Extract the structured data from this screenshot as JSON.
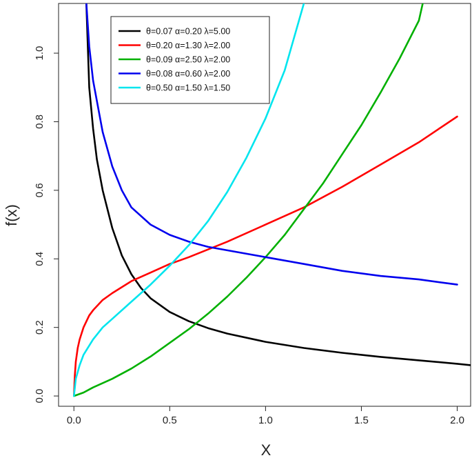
{
  "chart_data": {
    "type": "line",
    "title": "",
    "xlabel": "X",
    "ylabel": "f(x)",
    "xlim": [
      -0.08,
      2.07
    ],
    "ylim": [
      -0.03,
      1.145
    ],
    "xticks": [
      0.0,
      0.5,
      1.0,
      1.5,
      2.0
    ],
    "xtick_labels": [
      "0.0",
      "0.5",
      "1.0",
      "1.5",
      "2.0"
    ],
    "yticks": [
      0.0,
      0.2,
      0.4,
      0.6,
      0.8,
      1.0
    ],
    "ytick_labels": [
      "0.0",
      "0.2",
      "0.4",
      "0.6",
      "0.8",
      "1.0"
    ],
    "grid": false,
    "legend_position": "top-left",
    "series": [
      {
        "name": "θ=0.07  α=0.20  λ=5.00",
        "color": "#000000",
        "x": [
          0.065,
          0.08,
          0.1,
          0.12,
          0.15,
          0.2,
          0.25,
          0.3,
          0.35,
          0.4,
          0.5,
          0.6,
          0.7,
          0.8,
          1.0,
          1.2,
          1.4,
          1.6,
          1.8,
          2.0,
          2.07
        ],
        "y": [
          1.145,
          0.9,
          0.78,
          0.69,
          0.6,
          0.49,
          0.41,
          0.355,
          0.315,
          0.285,
          0.245,
          0.218,
          0.198,
          0.182,
          0.158,
          0.14,
          0.126,
          0.114,
          0.104,
          0.094,
          0.09
        ]
      },
      {
        "name": "θ=0.20  α=1.30  λ=2.00",
        "color": "#ff0000",
        "x": [
          0.0,
          0.005,
          0.01,
          0.02,
          0.03,
          0.05,
          0.08,
          0.1,
          0.15,
          0.2,
          0.3,
          0.4,
          0.5,
          0.6,
          0.8,
          1.0,
          1.2,
          1.4,
          1.6,
          1.8,
          2.0
        ],
        "y": [
          0.0,
          0.06,
          0.1,
          0.14,
          0.165,
          0.2,
          0.235,
          0.25,
          0.28,
          0.3,
          0.335,
          0.36,
          0.385,
          0.405,
          0.45,
          0.5,
          0.55,
          0.61,
          0.675,
          0.74,
          0.815
        ]
      },
      {
        "name": "θ=0.09  α=2.50  λ=2.00",
        "color": "#00b000",
        "x": [
          0.0,
          0.05,
          0.1,
          0.2,
          0.3,
          0.4,
          0.5,
          0.6,
          0.7,
          0.8,
          0.9,
          1.0,
          1.1,
          1.2,
          1.3,
          1.4,
          1.5,
          1.6,
          1.7,
          1.8,
          1.82
        ],
        "y": [
          0.0,
          0.01,
          0.025,
          0.05,
          0.08,
          0.115,
          0.155,
          0.195,
          0.24,
          0.29,
          0.345,
          0.405,
          0.47,
          0.545,
          0.62,
          0.705,
          0.79,
          0.885,
          0.985,
          1.095,
          1.145
        ]
      },
      {
        "name": "θ=0.08  α=0.60  λ=2.00",
        "color": "#0000ee",
        "x": [
          0.065,
          0.08,
          0.1,
          0.15,
          0.2,
          0.25,
          0.3,
          0.4,
          0.5,
          0.6,
          0.7,
          0.8,
          1.0,
          1.2,
          1.4,
          1.6,
          1.8,
          2.0
        ],
        "y": [
          1.145,
          1.02,
          0.92,
          0.77,
          0.67,
          0.6,
          0.55,
          0.5,
          0.47,
          0.45,
          0.435,
          0.425,
          0.405,
          0.385,
          0.365,
          0.35,
          0.34,
          0.325
        ]
      },
      {
        "name": "θ=0.50  α=1.50  λ=1.50",
        "color": "#00e5ee",
        "x": [
          0.0,
          0.01,
          0.03,
          0.05,
          0.1,
          0.15,
          0.2,
          0.3,
          0.4,
          0.5,
          0.6,
          0.7,
          0.8,
          0.9,
          1.0,
          1.1,
          1.2
        ],
        "y": [
          0.0,
          0.05,
          0.09,
          0.12,
          0.165,
          0.2,
          0.225,
          0.275,
          0.325,
          0.38,
          0.44,
          0.51,
          0.595,
          0.695,
          0.81,
          0.95,
          1.145
        ]
      }
    ]
  }
}
